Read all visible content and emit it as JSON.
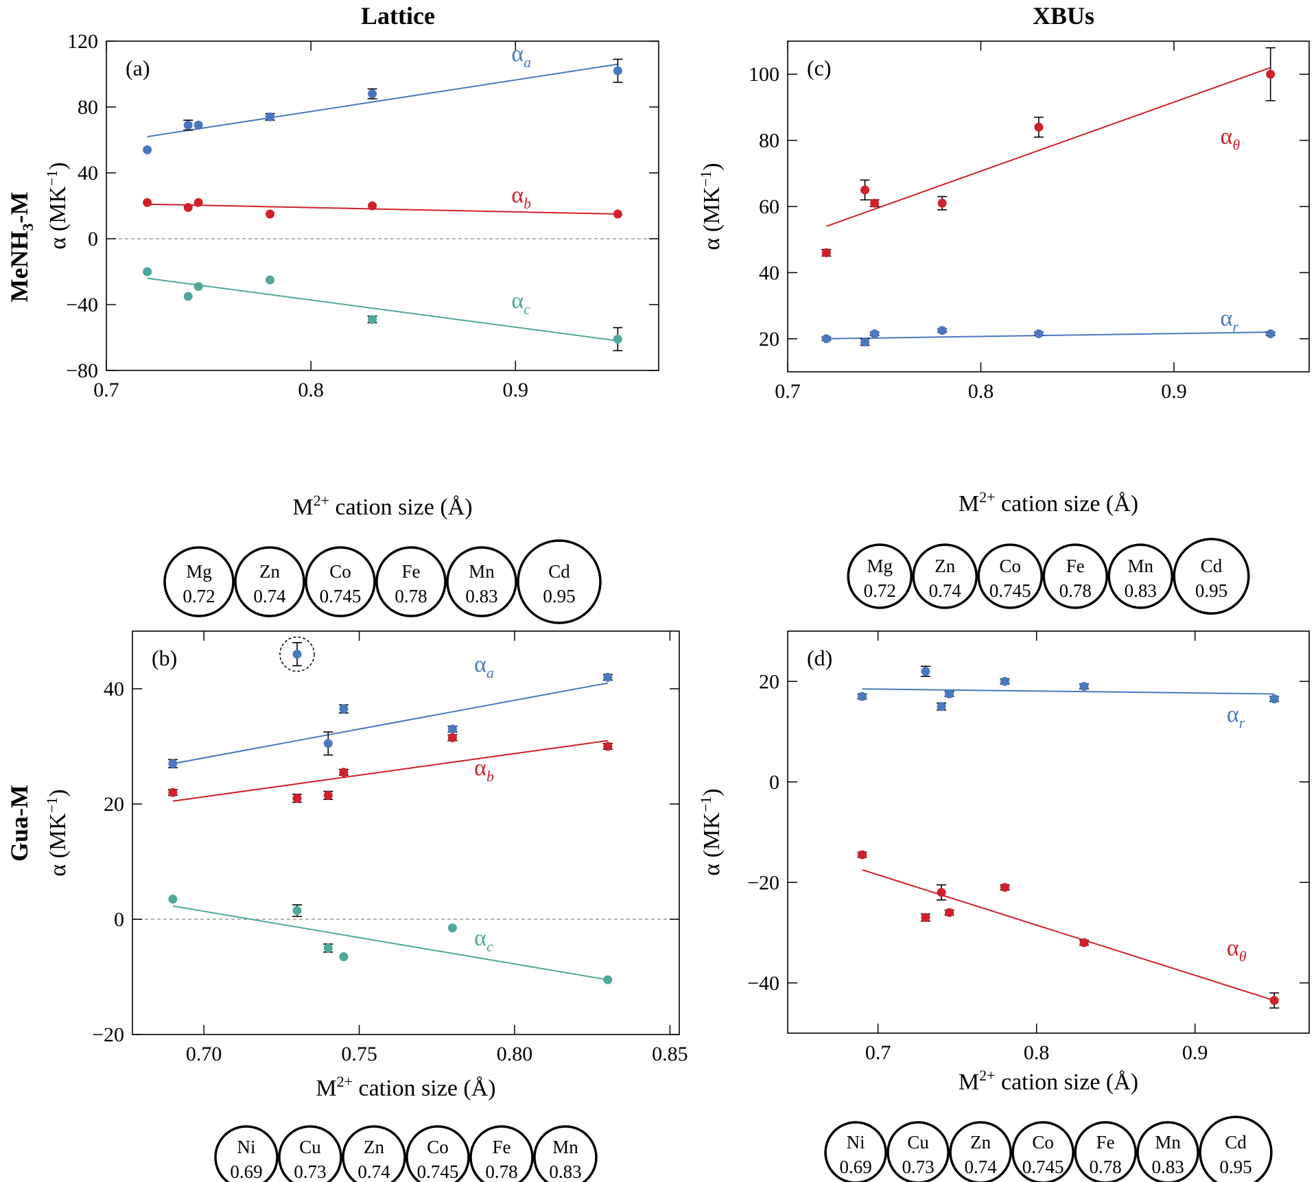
{
  "figure": {
    "column_titles": [
      "Lattice",
      "XBUs"
    ],
    "row_titles": {
      "top": {
        "prefix": "MeNH",
        "sub": "3",
        "suffix": "-M"
      },
      "bottom": {
        "text": "Gua-M"
      }
    },
    "ylabel": {
      "main": "α (MK",
      "sup": "−1",
      "close": ")"
    },
    "xlabel": {
      "main": "M",
      "sup": "2+",
      "rest": " cation size (Å)"
    }
  },
  "colors": {
    "blue": "#4a78c0",
    "red": "#d0202a",
    "teal": "#4fa89a",
    "zero_line": "#999999"
  },
  "chart_data": [
    {
      "id": "a",
      "type": "scatter",
      "panel_label": "(a)",
      "xlim": [
        0.7,
        0.97
      ],
      "ylim": [
        -80,
        120
      ],
      "xticks": [
        0.7,
        0.8,
        0.9
      ],
      "xtick_labels": [
        "0.7",
        "0.8",
        "0.9"
      ],
      "yticks": [
        -80,
        -40,
        0,
        40,
        80,
        120
      ],
      "ytick_labels": [
        "−80",
        "−40",
        "0",
        "40",
        "80",
        "120"
      ],
      "zero_line": true,
      "series": [
        {
          "name": "α_a",
          "symbol": "α",
          "sub": "a",
          "color": "blue",
          "label_at": [
            0.898,
            108
          ],
          "points": [
            [
              0.72,
              54,
              0
            ],
            [
              0.74,
              69,
              3
            ],
            [
              0.745,
              69,
              0
            ],
            [
              0.78,
              74,
              2
            ],
            [
              0.83,
              88,
              3
            ],
            [
              0.95,
              102,
              7
            ]
          ],
          "fit": [
            [
              0.72,
              62
            ],
            [
              0.95,
              106
            ]
          ]
        },
        {
          "name": "α_b",
          "symbol": "α",
          "sub": "b",
          "color": "red",
          "label_at": [
            0.898,
            22
          ],
          "points": [
            [
              0.72,
              22,
              0
            ],
            [
              0.74,
              19,
              0
            ],
            [
              0.745,
              22,
              0
            ],
            [
              0.78,
              15,
              0
            ],
            [
              0.83,
              20,
              0
            ],
            [
              0.95,
              15,
              0
            ]
          ],
          "fit": [
            [
              0.72,
              21
            ],
            [
              0.95,
              15
            ]
          ]
        },
        {
          "name": "α_c",
          "symbol": "α",
          "sub": "c",
          "color": "teal",
          "label_at": [
            0.898,
            -42
          ],
          "points": [
            [
              0.72,
              -20,
              0
            ],
            [
              0.74,
              -35,
              0
            ],
            [
              0.745,
              -29,
              0
            ],
            [
              0.78,
              -25,
              0
            ],
            [
              0.83,
              -49,
              2
            ],
            [
              0.95,
              -61,
              7
            ]
          ],
          "fit": [
            [
              0.72,
              -24
            ],
            [
              0.95,
              -62
            ]
          ]
        }
      ],
      "cations": [
        {
          "sym": "Mg",
          "val": "0.72"
        },
        {
          "sym": "Zn",
          "val": "0.74"
        },
        {
          "sym": "Co",
          "val": "0.745"
        },
        {
          "sym": "Fe",
          "val": "0.78"
        },
        {
          "sym": "Mn",
          "val": "0.83"
        },
        {
          "sym": "Cd",
          "val": "0.95"
        }
      ]
    },
    {
      "id": "c",
      "type": "scatter",
      "panel_label": "(c)",
      "xlim": [
        0.7,
        0.97
      ],
      "ylim": [
        10,
        110
      ],
      "xticks": [
        0.7,
        0.8,
        0.9
      ],
      "xtick_labels": [
        "0.7",
        "0.8",
        "0.9"
      ],
      "yticks": [
        20,
        40,
        60,
        80,
        100
      ],
      "ytick_labels": [
        "20",
        "40",
        "60",
        "80",
        "100"
      ],
      "zero_line": false,
      "series": [
        {
          "name": "α_θ",
          "symbol": "α",
          "sub": "θ",
          "color": "red",
          "label_at": [
            0.924,
            79
          ],
          "points": [
            [
              0.72,
              46,
              1
            ],
            [
              0.74,
              65,
              3
            ],
            [
              0.745,
              61,
              1
            ],
            [
              0.78,
              61,
              2
            ],
            [
              0.83,
              84,
              3
            ],
            [
              0.95,
              100,
              8
            ]
          ],
          "fit": [
            [
              0.72,
              54
            ],
            [
              0.95,
              102
            ]
          ]
        },
        {
          "name": "α_r",
          "symbol": "α",
          "sub": "r",
          "color": "blue",
          "label_at": [
            0.924,
            24
          ],
          "points": [
            [
              0.72,
              20,
              0.5
            ],
            [
              0.74,
              19,
              1
            ],
            [
              0.745,
              21.5,
              0.5
            ],
            [
              0.78,
              22.5,
              0.5
            ],
            [
              0.83,
              21.5,
              0.5
            ],
            [
              0.95,
              21.5,
              0.5
            ]
          ],
          "fit": [
            [
              0.72,
              20
            ],
            [
              0.95,
              22
            ]
          ]
        }
      ],
      "cations": [
        {
          "sym": "Mg",
          "val": "0.72"
        },
        {
          "sym": "Zn",
          "val": "0.74"
        },
        {
          "sym": "Co",
          "val": "0.745"
        },
        {
          "sym": "Fe",
          "val": "0.78"
        },
        {
          "sym": "Mn",
          "val": "0.83"
        },
        {
          "sym": "Cd",
          "val": "0.95"
        }
      ]
    },
    {
      "id": "b",
      "type": "scatter",
      "panel_label": "(b)",
      "xlim": [
        0.677,
        0.853
      ],
      "ylim": [
        -20,
        50
      ],
      "xticks": [
        0.7,
        0.75,
        0.8,
        0.85
      ],
      "xtick_labels": [
        "0.70",
        "0.75",
        "0.80",
        "0.85"
      ],
      "yticks": [
        -20,
        0,
        20,
        40
      ],
      "ytick_labels": [
        "−20",
        "0",
        "20",
        "40"
      ],
      "zero_line": true,
      "outlier_circle": [
        0.73,
        46
      ],
      "series": [
        {
          "name": "α_a",
          "symbol": "α",
          "sub": "a",
          "color": "blue",
          "label_at": [
            0.787,
            43
          ],
          "points": [
            [
              0.69,
              27,
              0.7
            ],
            [
              0.73,
              46,
              2
            ],
            [
              0.74,
              30.5,
              2
            ],
            [
              0.745,
              36.5,
              0.7
            ],
            [
              0.78,
              33,
              0.5
            ],
            [
              0.83,
              42,
              0.5
            ]
          ],
          "fit": [
            [
              0.69,
              27
            ],
            [
              0.83,
              41
            ]
          ]
        },
        {
          "name": "α_b",
          "symbol": "α",
          "sub": "b",
          "color": "red",
          "label_at": [
            0.787,
            25
          ],
          "points": [
            [
              0.69,
              22,
              0.5
            ],
            [
              0.73,
              21,
              0.7
            ],
            [
              0.74,
              21.5,
              0.7
            ],
            [
              0.745,
              25.5,
              0.5
            ],
            [
              0.78,
              31.5,
              0.5
            ],
            [
              0.83,
              30,
              0.5
            ]
          ],
          "fit": [
            [
              0.69,
              20.5
            ],
            [
              0.83,
              31
            ]
          ]
        },
        {
          "name": "α_c",
          "symbol": "α",
          "sub": "c",
          "color": "teal",
          "label_at": [
            0.787,
            -4.5
          ],
          "points": [
            [
              0.69,
              3.5,
              0
            ],
            [
              0.73,
              1.5,
              1
            ],
            [
              0.74,
              -5,
              0.7
            ],
            [
              0.745,
              -6.5,
              0
            ],
            [
              0.78,
              -1.5,
              0
            ],
            [
              0.83,
              -10.5,
              0
            ]
          ],
          "fit": [
            [
              0.69,
              2.3
            ],
            [
              0.83,
              -10.5
            ]
          ]
        }
      ],
      "cations": [
        {
          "sym": "Ni",
          "val": "0.69"
        },
        {
          "sym": "Cu",
          "val": "0.73"
        },
        {
          "sym": "Zn",
          "val": "0.74"
        },
        {
          "sym": "Co",
          "val": "0.745"
        },
        {
          "sym": "Fe",
          "val": "0.78"
        },
        {
          "sym": "Mn",
          "val": "0.83"
        }
      ]
    },
    {
      "id": "d",
      "type": "scatter",
      "panel_label": "(d)",
      "xlim": [
        0.643,
        0.972
      ],
      "ylim": [
        -50,
        30
      ],
      "xticks": [
        0.7,
        0.8,
        0.9
      ],
      "xtick_labels": [
        "0.7",
        "0.8",
        "0.9"
      ],
      "yticks": [
        -40,
        -20,
        0,
        20
      ],
      "ytick_labels": [
        "−40",
        "−20",
        "0",
        "20"
      ],
      "zero_line": false,
      "series": [
        {
          "name": "α_r",
          "symbol": "α",
          "sub": "r",
          "color": "blue",
          "label_at": [
            0.92,
            12
          ],
          "points": [
            [
              0.69,
              17,
              0.5
            ],
            [
              0.73,
              22,
              1
            ],
            [
              0.74,
              15,
              0.7
            ],
            [
              0.745,
              17.5,
              0.5
            ],
            [
              0.78,
              20,
              0.5
            ],
            [
              0.83,
              19,
              0.5
            ],
            [
              0.95,
              16.5,
              0.5
            ]
          ],
          "fit": [
            [
              0.69,
              18.5
            ],
            [
              0.95,
              17.5
            ]
          ]
        },
        {
          "name": "α_θ",
          "symbol": "α",
          "sub": "θ",
          "color": "red",
          "label_at": [
            0.92,
            -34.5
          ],
          "points": [
            [
              0.69,
              -14.5,
              0.5
            ],
            [
              0.73,
              -27,
              0.7
            ],
            [
              0.74,
              -22,
              1.5
            ],
            [
              0.745,
              -26,
              0.5
            ],
            [
              0.78,
              -21,
              0.5
            ],
            [
              0.83,
              -32,
              0.5
            ],
            [
              0.95,
              -43.5,
              1.5
            ]
          ],
          "fit": [
            [
              0.69,
              -17.5
            ],
            [
              0.95,
              -43.5
            ]
          ]
        }
      ],
      "cations": [
        {
          "sym": "Ni",
          "val": "0.69"
        },
        {
          "sym": "Cu",
          "val": "0.73"
        },
        {
          "sym": "Zn",
          "val": "0.74"
        },
        {
          "sym": "Co",
          "val": "0.745"
        },
        {
          "sym": "Fe",
          "val": "0.78"
        },
        {
          "sym": "Mn",
          "val": "0.83"
        },
        {
          "sym": "Cd",
          "val": "0.95"
        }
      ]
    }
  ]
}
